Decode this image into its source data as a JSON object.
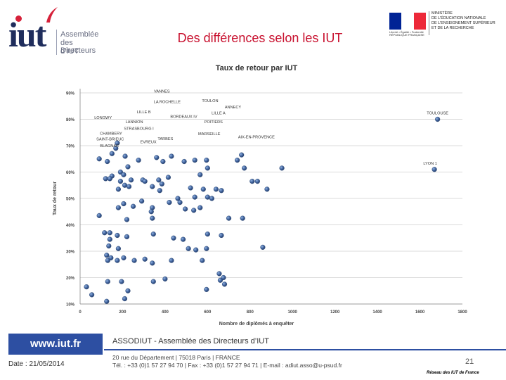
{
  "header": {
    "logo_iut": "iut",
    "logo_lines": [
      "Assemblée",
      "des Directeurs",
      "d’IUT"
    ],
    "slide_title": "Des différences selon les IUT",
    "ministry_lines": [
      "MINISTÈRE",
      "DE L’ÉDUCATION NATIONALE",
      "DE L’ENSEIGNEMENT SUPÉRIEUR",
      "ET DE LA RECHERCHE"
    ],
    "flag_caption": "Liberté • Égalité • Fraternité RÉPUBLIQUE FRANÇAISE",
    "flag_colors": [
      "#002395",
      "#ffffff",
      "#ed2939"
    ]
  },
  "chart_data": {
    "type": "scatter",
    "title": "Taux de retour par IUT",
    "xlabel": "Nombre de diplômés à enquêter",
    "ylabel": "Taux de retour",
    "xlim": [
      0,
      1800
    ],
    "ylim": [
      10,
      90
    ],
    "xticks": [
      0,
      200,
      400,
      600,
      800,
      1000,
      1200,
      1400,
      1600,
      1800
    ],
    "yticks": [
      10,
      20,
      30,
      40,
      50,
      60,
      70,
      80,
      90
    ],
    "ytick_labels": [
      "10%",
      "20%",
      "30%",
      "40%",
      "50%",
      "60%",
      "70%",
      "80%",
      "90%"
    ],
    "grid": "horizontal",
    "marker_color": "#3b5d96",
    "labeled_points": [
      {
        "label": "VANNES",
        "x": 385,
        "y": 88.5
      },
      {
        "label": "LA ROCHELLE",
        "x": 410,
        "y": 84.5
      },
      {
        "label": "TOULON",
        "x": 612,
        "y": 85
      },
      {
        "label": "ANNECY",
        "x": 713,
        "y": 82.5
      },
      {
        "label": "LILLE B",
        "x": 300,
        "y": 81
      },
      {
        "label": "LILLE A",
        "x": 665,
        "y": 80.5
      },
      {
        "label": "TOULOUSE",
        "x": 1683,
        "y": 80
      },
      {
        "label": "LONGWY",
        "x": 108,
        "y": 78.5
      },
      {
        "label": "LANNION",
        "x": 255,
        "y": 77.5
      },
      {
        "label": "BORDEAUX IV",
        "x": 488,
        "y": 79.5
      },
      {
        "label": "POITIERS",
        "x": 648,
        "y": 77.5
      },
      {
        "label": "CHAMBERY",
        "x": 172,
        "y": 75
      },
      {
        "label": "STRASBOURG I",
        "x": 250,
        "y": 75
      },
      {
        "label": "SAINT-BRIEUC",
        "x": 168,
        "y": 72.5
      },
      {
        "label": "TARBES",
        "x": 375,
        "y": 73
      },
      {
        "label": "MARSEILLE",
        "x": 608,
        "y": 73
      },
      {
        "label": "AIX-EN-PROVENCE",
        "x": 830,
        "y": 71.5
      },
      {
        "label": "EVREUX",
        "x": 295,
        "y": 72
      },
      {
        "label": "BLAGNAC",
        "x": 158,
        "y": 70
      },
      {
        "label": "LYON 1",
        "x": 1668,
        "y": 61
      }
    ],
    "points": [
      [
        175,
        71
      ],
      [
        168,
        69
      ],
      [
        150,
        67
      ],
      [
        90,
        65
      ],
      [
        128,
        64
      ],
      [
        212,
        66
      ],
      [
        275,
        64.5
      ],
      [
        360,
        65.5
      ],
      [
        390,
        64
      ],
      [
        430,
        66
      ],
      [
        490,
        64
      ],
      [
        540,
        64.5
      ],
      [
        595,
        64.5
      ],
      [
        600,
        61.5
      ],
      [
        740,
        64.5
      ],
      [
        760,
        66.5
      ],
      [
        773,
        61.5
      ],
      [
        950,
        61.5
      ],
      [
        225,
        62
      ],
      [
        190,
        60
      ],
      [
        205,
        59
      ],
      [
        150,
        58.5
      ],
      [
        120,
        57.5
      ],
      [
        140,
        57.5
      ],
      [
        190,
        56.5
      ],
      [
        240,
        57
      ],
      [
        295,
        57
      ],
      [
        305,
        56.5
      ],
      [
        370,
        57
      ],
      [
        385,
        55.5
      ],
      [
        415,
        58
      ],
      [
        565,
        59
      ],
      [
        810,
        56.5
      ],
      [
        835,
        56.5
      ],
      [
        880,
        53.5
      ],
      [
        210,
        55
      ],
      [
        180,
        53.5
      ],
      [
        230,
        54.5
      ],
      [
        340,
        54.5
      ],
      [
        375,
        53
      ],
      [
        520,
        54
      ],
      [
        580,
        53.5
      ],
      [
        640,
        53.5
      ],
      [
        600,
        50.5
      ],
      [
        620,
        50
      ],
      [
        665,
        53
      ],
      [
        540,
        50.5
      ],
      [
        460,
        50
      ],
      [
        470,
        48.5
      ],
      [
        420,
        48.5
      ],
      [
        290,
        49
      ],
      [
        250,
        47
      ],
      [
        205,
        48
      ],
      [
        180,
        46.5
      ],
      [
        340,
        46.5
      ],
      [
        335,
        45
      ],
      [
        495,
        46
      ],
      [
        535,
        45.5
      ],
      [
        565,
        46.5
      ],
      [
        90,
        43.5
      ],
      [
        220,
        42
      ],
      [
        340,
        42.5
      ],
      [
        700,
        42.5
      ],
      [
        765,
        42.5
      ],
      [
        140,
        37
      ],
      [
        115,
        37
      ],
      [
        140,
        34.5
      ],
      [
        175,
        36
      ],
      [
        220,
        35.5
      ],
      [
        345,
        36.5
      ],
      [
        440,
        35
      ],
      [
        485,
        34.5
      ],
      [
        600,
        36.5
      ],
      [
        665,
        36
      ],
      [
        595,
        31
      ],
      [
        545,
        30.5
      ],
      [
        510,
        31
      ],
      [
        860,
        31.5
      ],
      [
        135,
        32
      ],
      [
        180,
        31
      ],
      [
        125,
        28.5
      ],
      [
        145,
        27.5
      ],
      [
        130,
        26.5
      ],
      [
        175,
        26.5
      ],
      [
        205,
        27.5
      ],
      [
        255,
        26.5
      ],
      [
        305,
        27
      ],
      [
        340,
        25.5
      ],
      [
        430,
        26.5
      ],
      [
        575,
        26.5
      ],
      [
        655,
        21.5
      ],
      [
        675,
        20
      ],
      [
        660,
        19
      ],
      [
        400,
        19.5
      ],
      [
        345,
        18.5
      ],
      [
        130,
        18.5
      ],
      [
        195,
        18.5
      ],
      [
        30,
        16.5
      ],
      [
        225,
        15
      ],
      [
        595,
        15.5
      ],
      [
        680,
        17.5
      ],
      [
        55,
        13.5
      ],
      [
        210,
        12
      ],
      [
        125,
        11
      ],
      [
        1683,
        80
      ],
      [
        1668,
        61
      ]
    ]
  },
  "footer": {
    "url": "www.iut.fr",
    "org": "ASSODIUT - Assemblée des Directeurs d’IUT",
    "date": "Date : 21/05/2014",
    "address_line1": "20 rue du Département | 75018 Paris | FRANCE",
    "address_line2": "Tél. : +33 (0)1 57 27 94 70 | Fax : +33 (0)1 57 27 94 71 | E-mail : adiut.asso@u-psud.fr",
    "page_number": "21",
    "network": "Réseau des IUT de France"
  }
}
